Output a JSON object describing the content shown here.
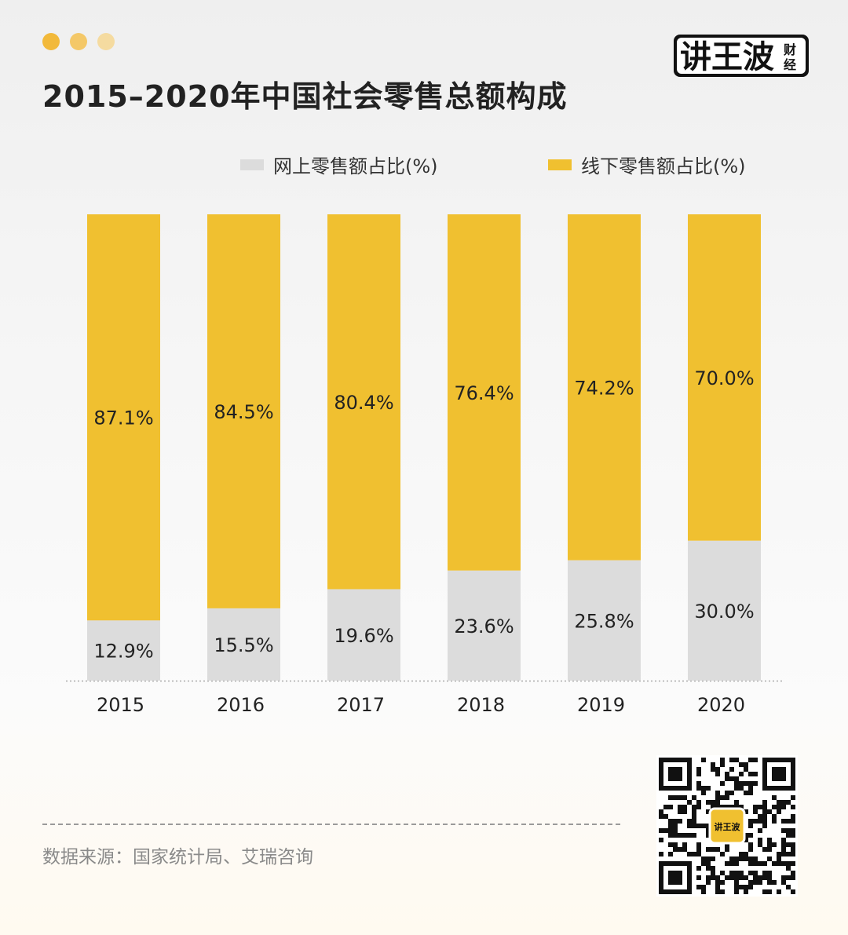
{
  "header": {
    "title": "2015–2020年中国社会零售总额构成",
    "dot_colors": [
      "#f2b93a",
      "#f4c868",
      "#f5dba0"
    ]
  },
  "logo": {
    "text": "讲王波",
    "subtext": "财经"
  },
  "colors": {
    "online": "#dcdcdc",
    "offline": "#f0c030"
  },
  "chart_data": {
    "type": "bar",
    "stacked": true,
    "title": "2015–2020年中国社会零售总额构成",
    "categories": [
      "2015",
      "2016",
      "2017",
      "2018",
      "2019",
      "2020"
    ],
    "series": [
      {
        "name": "网上零售额占比(%)",
        "values": [
          12.9,
          15.5,
          19.6,
          23.6,
          25.8,
          30.0
        ],
        "labels": [
          "12.9%",
          "15.5%",
          "19.6%",
          "23.6%",
          "25.8%",
          "30.0%"
        ]
      },
      {
        "name": "线下零售额占比(%)",
        "values": [
          87.1,
          84.5,
          80.4,
          76.4,
          74.2,
          70.0
        ],
        "labels": [
          "87.1%",
          "84.5%",
          "80.4%",
          "76.4%",
          "74.2%",
          "70.0%"
        ]
      }
    ],
    "ylim": [
      0,
      100
    ],
    "grid": false,
    "legend": "top"
  },
  "footer": {
    "source": "数据来源：国家统计局、艾瑞咨询",
    "qr_label": "讲王波"
  }
}
